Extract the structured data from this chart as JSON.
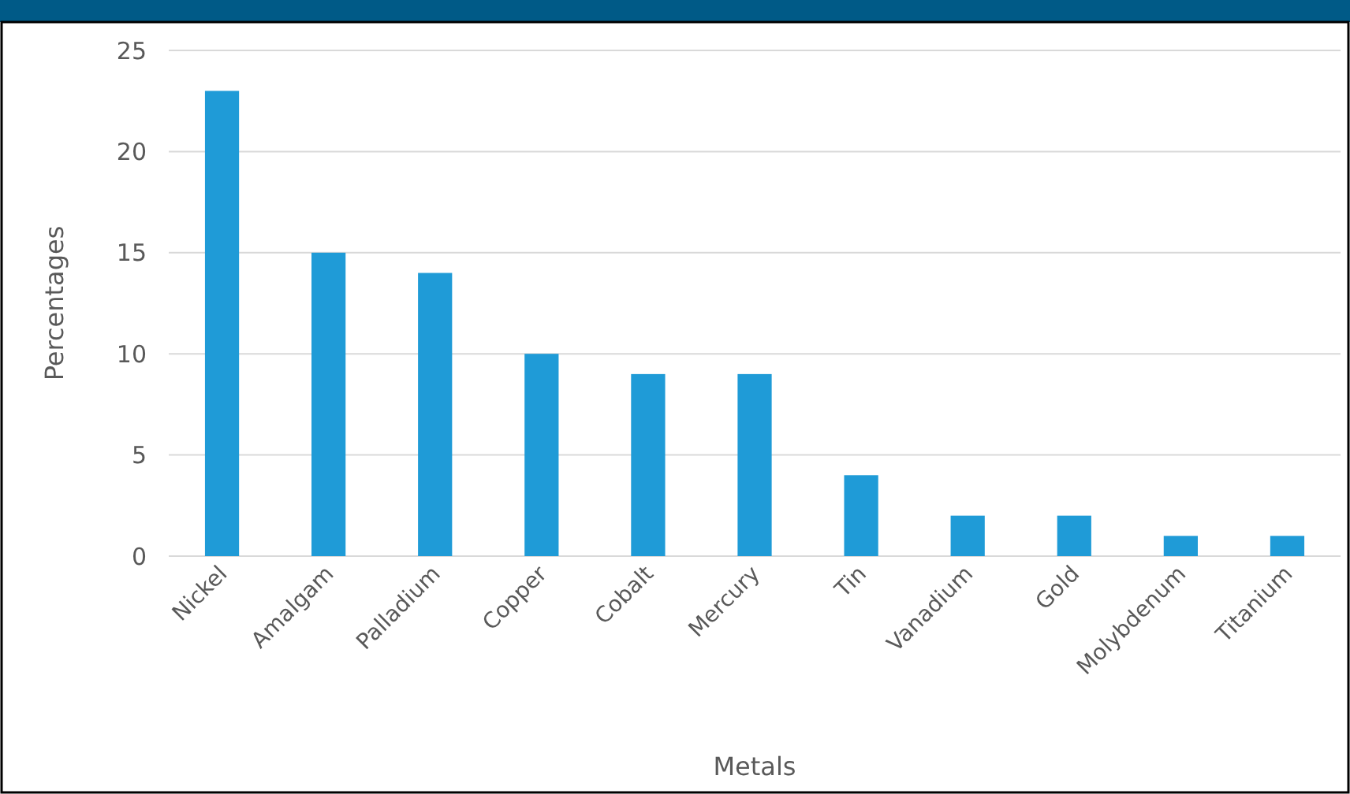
{
  "chart_data": {
    "type": "bar",
    "xlabel": "Metals",
    "ylabel": "Percentages",
    "categories": [
      "Nickel",
      "Amalgam",
      "Palladium",
      "Copper",
      "Cobalt",
      "Mercury",
      "Tin",
      "Vanadium",
      "Gold",
      "Molybdenum",
      "Titanium"
    ],
    "values": [
      23,
      15,
      14,
      10,
      9,
      9,
      4,
      2,
      2,
      1,
      1
    ],
    "color": "#1f9bd7",
    "ylim": [
      0,
      25
    ],
    "yticks": [
      0,
      5,
      10,
      15,
      20,
      25
    ],
    "grid": "y"
  }
}
